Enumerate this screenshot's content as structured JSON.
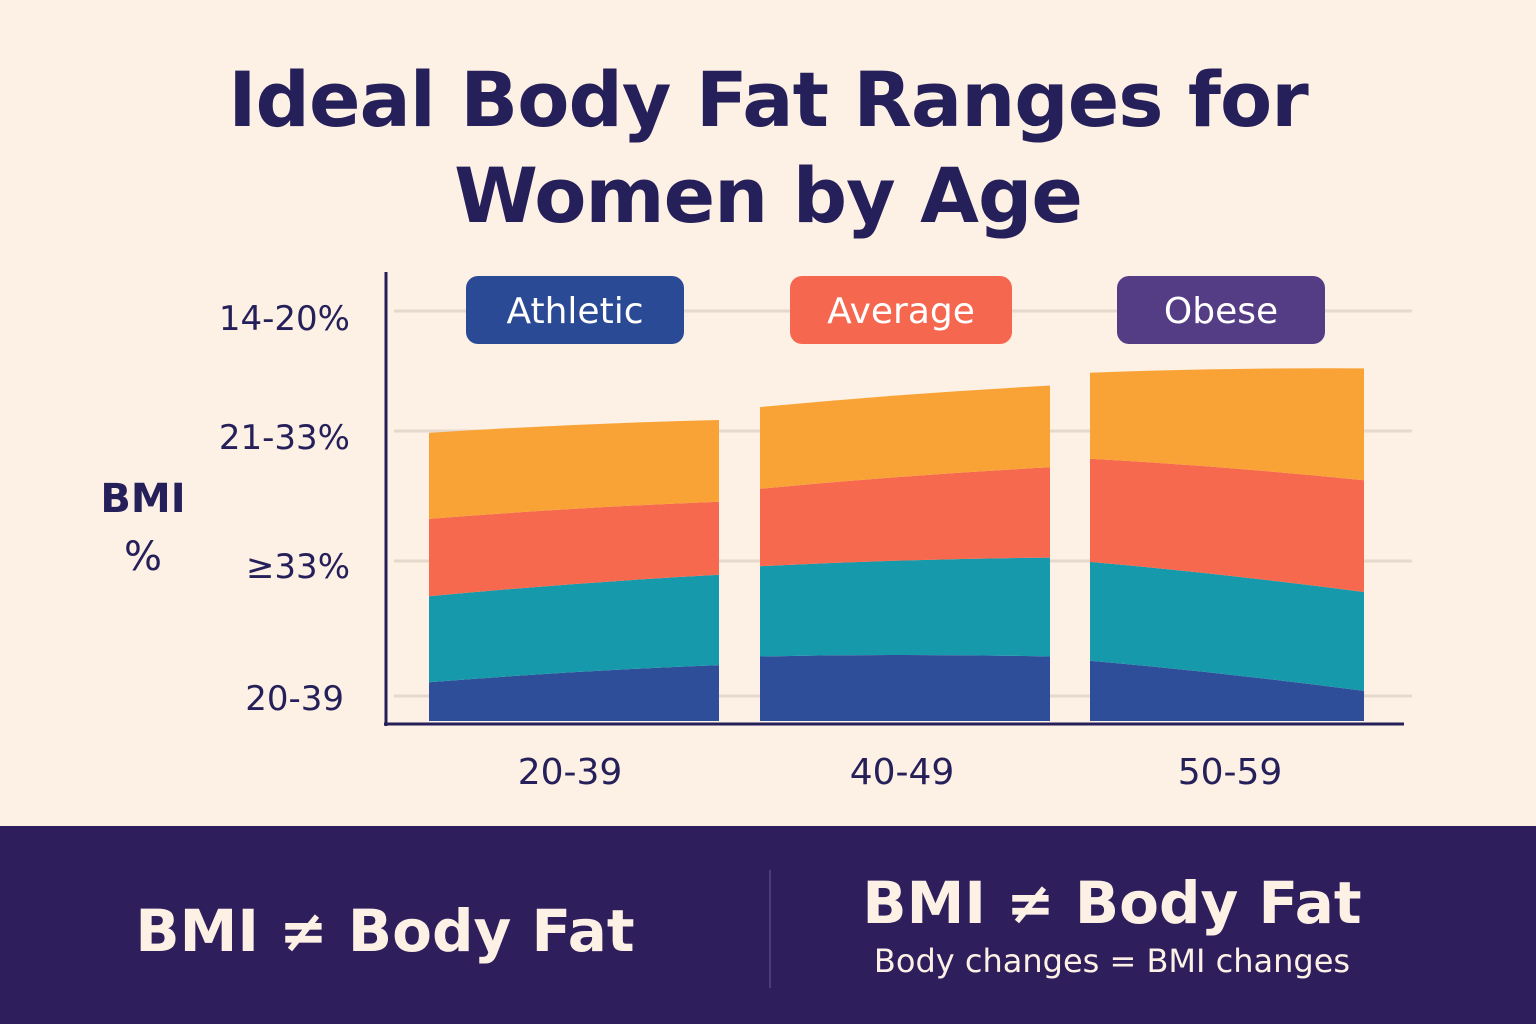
{
  "title": {
    "line1": "Ideal Body Fat Ranges for",
    "line2": "Women by Age"
  },
  "chart_data": {
    "type": "area",
    "title": "Ideal Body Fat Ranges for Women by Age",
    "ylabel": [
      "BMI",
      "%"
    ],
    "xlabel": "",
    "y_tick_labels": [
      "14-20%",
      "21-33%",
      "≥33%",
      "20-39"
    ],
    "legend": [
      {
        "label": "Athletic",
        "color": "#2b4a96"
      },
      {
        "label": "Average",
        "color": "#f5674f"
      },
      {
        "label": "Obese",
        "color": "#553d86"
      }
    ],
    "legend_position": "top",
    "categories": [
      "20-39",
      "40-49",
      "50-59"
    ],
    "series_units": "relative stack height (0-100 scale)",
    "series": [
      {
        "name": "dark blue layer",
        "color": "#2f4e9a",
        "values": [
          [
            9,
            13
          ],
          [
            15,
            15
          ],
          [
            14,
            7
          ]
        ]
      },
      {
        "name": "teal layer",
        "color": "#169aab",
        "values": [
          [
            20,
            21
          ],
          [
            21,
            23
          ],
          [
            23,
            23
          ]
        ]
      },
      {
        "name": "coral layer",
        "color": "#f6694e",
        "values": [
          [
            18,
            17
          ],
          [
            18,
            21
          ],
          [
            24,
            26
          ]
        ]
      },
      {
        "name": "orange layer",
        "color": "#f9a336",
        "values": [
          [
            20,
            19
          ],
          [
            19,
            19
          ],
          [
            20,
            26
          ]
        ]
      }
    ],
    "grid": true
  },
  "footer": {
    "left_text": "BMI ≠ Body Fat",
    "right_title": "BMI ≠ Body Fat",
    "right_subtitle": "Body changes = BMI changes"
  }
}
